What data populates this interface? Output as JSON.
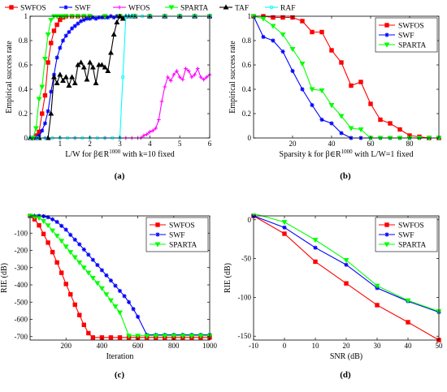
{
  "colors": {
    "SWFOS": "#ff0000",
    "SWF": "#0000ff",
    "WFOS": "#ff00ff",
    "SPARTA": "#00ff00",
    "TAF": "#000000",
    "RAF": "#00ffff"
  },
  "chart_data": [
    {
      "id": "a",
      "type": "line",
      "panel_label": "(a)",
      "xlabel_prefix": "L/W for β∈R",
      "xlabel_sup": "1000",
      "xlabel_suffix": " with k=10 fixed",
      "ylabel": "Empirical success rate",
      "xlim": [
        0,
        6
      ],
      "ylim": [
        0,
        1
      ],
      "xticks": [
        0,
        1,
        2,
        3,
        4,
        5,
        6
      ],
      "xtick_labels": [
        "",
        "1",
        "2",
        "3",
        "4",
        "5",
        "6"
      ],
      "yticks": [
        0,
        0.2,
        0.4,
        0.6,
        0.8,
        1
      ],
      "ytick_labels": [
        "0",
        "0.2",
        "0.4",
        "0.6",
        "0.8",
        "1"
      ],
      "legend": "top (horizontal)",
      "series": [
        {
          "name": "SWFOS",
          "marker": "square",
          "x": [
            0.1,
            0.2,
            0.3,
            0.4,
            0.5,
            0.6,
            0.7,
            0.8,
            0.9,
            1.0,
            1.1,
            1.2,
            1.4,
            1.6,
            1.8,
            2.0,
            2.5,
            3,
            3.5,
            4,
            4.5,
            5,
            5.5,
            6
          ],
          "y": [
            0,
            0.02,
            0.05,
            0.2,
            0.35,
            0.62,
            0.78,
            0.88,
            0.93,
            0.97,
            0.99,
            1,
            1,
            1,
            1,
            1,
            1,
            1,
            1,
            1,
            1,
            1,
            1,
            1
          ]
        },
        {
          "name": "SWF",
          "marker": "star",
          "x": [
            0.1,
            0.2,
            0.3,
            0.4,
            0.5,
            0.6,
            0.7,
            0.8,
            0.9,
            1.0,
            1.1,
            1.2,
            1.3,
            1.4,
            1.5,
            1.6,
            1.7,
            1.8,
            1.9,
            2.0,
            2.1,
            2.2,
            2.3,
            2.4,
            2.5,
            2.6,
            2.7,
            2.8,
            2.9,
            3.0,
            3.5,
            4,
            4.5,
            5,
            5.5,
            6
          ],
          "y": [
            0,
            0,
            0.02,
            0.06,
            0.12,
            0.22,
            0.38,
            0.52,
            0.66,
            0.74,
            0.8,
            0.84,
            0.87,
            0.9,
            0.92,
            0.94,
            0.96,
            0.97,
            0.98,
            0.98,
            0.99,
            0.98,
            0.99,
            0.99,
            0.99,
            0.99,
            1,
            0.99,
            1,
            1,
            1,
            1,
            1,
            1,
            1,
            1
          ]
        },
        {
          "name": "WFOS",
          "marker": "plus",
          "x": [
            0,
            0.5,
            1,
            1.5,
            2,
            2.5,
            3,
            3.2,
            3.4,
            3.6,
            3.7,
            3.8,
            3.9,
            4.0,
            4.1,
            4.2,
            4.3,
            4.4,
            4.5,
            4.6,
            4.7,
            4.8,
            4.9,
            5.0,
            5.1,
            5.2,
            5.3,
            5.4,
            5.5,
            5.6,
            5.7,
            5.8,
            5.9,
            6.0
          ],
          "y": [
            0,
            0,
            0,
            0,
            0,
            0,
            0,
            0,
            0,
            0,
            0,
            0.02,
            0.03,
            0.05,
            0.06,
            0.08,
            0.15,
            0.3,
            0.42,
            0.5,
            0.47,
            0.52,
            0.55,
            0.5,
            0.48,
            0.57,
            0.55,
            0.5,
            0.52,
            0.57,
            0.5,
            0.48,
            0.5,
            0.52
          ]
        },
        {
          "name": "SPARTA",
          "marker": "triangle",
          "x": [
            0.1,
            0.2,
            0.3,
            0.4,
            0.5,
            0.6,
            0.7,
            0.8,
            0.9,
            1.0,
            1.1,
            1.2,
            1.4,
            1.6,
            1.8,
            2.0,
            2.5,
            3,
            3.5,
            4,
            4.5,
            5,
            5.5,
            6
          ],
          "y": [
            0,
            0.08,
            0.32,
            0.42,
            0.65,
            0.85,
            0.97,
            1,
            1,
            1,
            1,
            1,
            1,
            1,
            1,
            1,
            1,
            1,
            1,
            1,
            1,
            1,
            1,
            1
          ]
        },
        {
          "name": "TAF",
          "marker": "uptriangle",
          "x": [
            0,
            0.3,
            0.6,
            0.7,
            0.8,
            0.9,
            1.0,
            1.1,
            1.2,
            1.3,
            1.4,
            1.5,
            1.6,
            1.7,
            1.8,
            1.9,
            2.0,
            2.1,
            2.2,
            2.3,
            2.4,
            2.5,
            2.6,
            2.7,
            2.8,
            2.9,
            3.0,
            3.1,
            3.2,
            3.3,
            3.4,
            3.5,
            4,
            4.5,
            5,
            5.5,
            6
          ],
          "y": [
            0,
            0,
            0,
            0.2,
            0.5,
            0.45,
            0.52,
            0.47,
            0.5,
            0.43,
            0.5,
            0.45,
            0.6,
            0.62,
            0.58,
            0.48,
            0.62,
            0.58,
            0.45,
            0.6,
            0.6,
            0.58,
            0.55,
            0.7,
            0.85,
            0.95,
            1,
            0.98,
            1,
            1,
            1,
            1,
            1,
            1,
            1,
            1,
            1
          ]
        },
        {
          "name": "RAF",
          "marker": "circle",
          "x": [
            0,
            0.25,
            0.5,
            0.75,
            1,
            1.25,
            1.5,
            1.75,
            2,
            2.25,
            2.5,
            2.75,
            3.0,
            3.1,
            3.2,
            3.3,
            3.4,
            3.5,
            3.75,
            4,
            4.5,
            5,
            5.5,
            6
          ],
          "y": [
            0,
            0,
            0,
            0,
            0,
            0,
            0,
            0,
            0,
            0,
            0,
            0,
            0,
            0.5,
            1,
            1,
            1,
            1,
            1,
            1,
            1,
            1,
            1,
            1
          ]
        }
      ]
    },
    {
      "id": "b",
      "type": "line",
      "panel_label": "(b)",
      "xlabel_prefix": "Sparsity k for β∈R",
      "xlabel_sup": "1000",
      "xlabel_suffix": " with L/W=1 fixed",
      "ylabel": "Empirical success rate",
      "xlim": [
        0,
        95
      ],
      "ylim": [
        0,
        1
      ],
      "xticks": [
        20,
        40,
        60,
        80
      ],
      "xtick_labels": [
        "20",
        "40",
        "60",
        "80"
      ],
      "yticks": [
        0,
        0.2,
        0.4,
        0.6,
        0.8,
        1
      ],
      "ytick_labels": [
        "0",
        "0.2",
        "0.4",
        "0.6",
        "0.8",
        "1"
      ],
      "legend": "top-right",
      "series": [
        {
          "name": "SWFOS",
          "marker": "square",
          "x": [
            0,
            5,
            10,
            15,
            20,
            25,
            30,
            35,
            40,
            45,
            50,
            55,
            60,
            65,
            70,
            75,
            80,
            85,
            90,
            95
          ],
          "y": [
            1,
            1,
            0.99,
            0.99,
            0.99,
            0.96,
            0.87,
            0.87,
            0.72,
            0.62,
            0.43,
            0.46,
            0.28,
            0.15,
            0.12,
            0.07,
            0.02,
            0.01,
            0,
            0
          ]
        },
        {
          "name": "SWF",
          "marker": "star",
          "x": [
            0,
            5,
            10,
            15,
            20,
            25,
            30,
            35,
            40,
            45,
            50,
            55,
            60,
            65,
            70,
            75,
            80,
            85,
            90,
            95
          ],
          "y": [
            1,
            0.83,
            0.8,
            0.71,
            0.55,
            0.4,
            0.27,
            0.15,
            0.12,
            0.04,
            0,
            0,
            0,
            0,
            0,
            0,
            0,
            0,
            0,
            0
          ]
        },
        {
          "name": "SPARTA",
          "marker": "triangle",
          "x": [
            0,
            5,
            10,
            15,
            20,
            25,
            30,
            35,
            40,
            45,
            50,
            55,
            60,
            65,
            70,
            75,
            80,
            85,
            90,
            95
          ],
          "y": [
            1,
            0.98,
            0.92,
            0.85,
            0.73,
            0.61,
            0.4,
            0.39,
            0.27,
            0.18,
            0.08,
            0.07,
            0,
            0,
            0,
            0,
            0,
            0,
            0,
            0
          ]
        }
      ]
    },
    {
      "id": "c",
      "type": "line",
      "panel_label": "(c)",
      "xlabel": "Iteration",
      "ylabel": "RIE (dB)",
      "xlim": [
        0,
        1000
      ],
      "ylim": [
        -720,
        0
      ],
      "xticks": [
        200,
        400,
        600,
        800,
        1000
      ],
      "xtick_labels": [
        "200",
        "400",
        "600",
        "800",
        "1000"
      ],
      "yticks": [
        -100,
        -200,
        -300,
        -400,
        -500,
        -600,
        -700
      ],
      "ytick_labels": [
        "-100",
        "-200",
        "-300",
        "-400",
        "-500",
        "-600",
        "-700"
      ],
      "legend": "top-right",
      "series": [
        {
          "name": "SWFOS",
          "marker": "square",
          "x": [
            0,
            25,
            50,
            75,
            100,
            125,
            150,
            175,
            200,
            225,
            250,
            275,
            300,
            325,
            350,
            400,
            450,
            500,
            550,
            600,
            650,
            700,
            750,
            800,
            850,
            900,
            950,
            1000
          ],
          "y": [
            0,
            -20,
            -55,
            -105,
            -155,
            -210,
            -270,
            -330,
            -395,
            -455,
            -515,
            -575,
            -632,
            -680,
            -705,
            -705,
            -705,
            -705,
            -705,
            -705,
            -705,
            -705,
            -705,
            -705,
            -705,
            -705,
            -705,
            -705
          ]
        },
        {
          "name": "SWF",
          "marker": "star",
          "x": [
            0,
            25,
            50,
            75,
            100,
            125,
            150,
            175,
            200,
            225,
            250,
            275,
            300,
            325,
            350,
            375,
            400,
            425,
            450,
            475,
            500,
            525,
            550,
            575,
            600,
            650,
            700,
            750,
            800,
            850,
            900,
            950,
            1000
          ],
          "y": [
            0,
            0,
            0,
            -2,
            -8,
            -20,
            -35,
            -58,
            -80,
            -110,
            -138,
            -165,
            -195,
            -225,
            -255,
            -285,
            -315,
            -345,
            -375,
            -405,
            -435,
            -465,
            -500,
            -540,
            -585,
            -690,
            -690,
            -690,
            -690,
            -690,
            -690,
            -690,
            -690
          ]
        },
        {
          "name": "SPARTA",
          "marker": "triangle",
          "x": [
            0,
            25,
            50,
            75,
            100,
            125,
            150,
            175,
            200,
            225,
            250,
            275,
            300,
            325,
            350,
            375,
            400,
            425,
            450,
            475,
            500,
            550,
            600,
            650,
            700,
            750,
            800,
            850,
            900,
            950,
            1000
          ],
          "y": [
            0,
            -5,
            -12,
            -30,
            -55,
            -85,
            -115,
            -145,
            -178,
            -210,
            -240,
            -270,
            -300,
            -330,
            -360,
            -390,
            -420,
            -455,
            -490,
            -525,
            -560,
            -695,
            -695,
            -695,
            -695,
            -695,
            -695,
            -695,
            -695,
            -695,
            -695
          ]
        }
      ]
    },
    {
      "id": "d",
      "type": "line",
      "panel_label": "(d)",
      "xlabel": "SNR (dB)",
      "ylabel": "RIE (dB)",
      "xlim": [
        -10,
        50
      ],
      "ylim": [
        -155,
        5
      ],
      "xticks": [
        -10,
        0,
        10,
        20,
        30,
        40,
        50
      ],
      "xtick_labels": [
        "-10",
        "0",
        "10",
        "20",
        "30",
        "40",
        "50"
      ],
      "yticks": [
        0,
        -50,
        -100,
        -150
      ],
      "ytick_labels": [
        "0",
        "-50",
        "-100",
        "-150"
      ],
      "legend": "top-right",
      "series": [
        {
          "name": "SWFOS",
          "marker": "square",
          "x": [
            -10,
            0,
            10,
            20,
            30,
            40,
            50
          ],
          "y": [
            5,
            -18,
            -54,
            -82,
            -110,
            -132,
            -155
          ]
        },
        {
          "name": "SWF",
          "marker": "star",
          "x": [
            -10,
            0,
            10,
            20,
            30,
            40,
            50
          ],
          "y": [
            5,
            -10,
            -36,
            -58,
            -88,
            -105,
            -119
          ]
        },
        {
          "name": "SPARTA",
          "marker": "triangle",
          "x": [
            -10,
            0,
            10,
            20,
            30,
            40,
            50
          ],
          "y": [
            8,
            -3,
            -26,
            -52,
            -85,
            -104,
            -118
          ]
        }
      ]
    }
  ]
}
